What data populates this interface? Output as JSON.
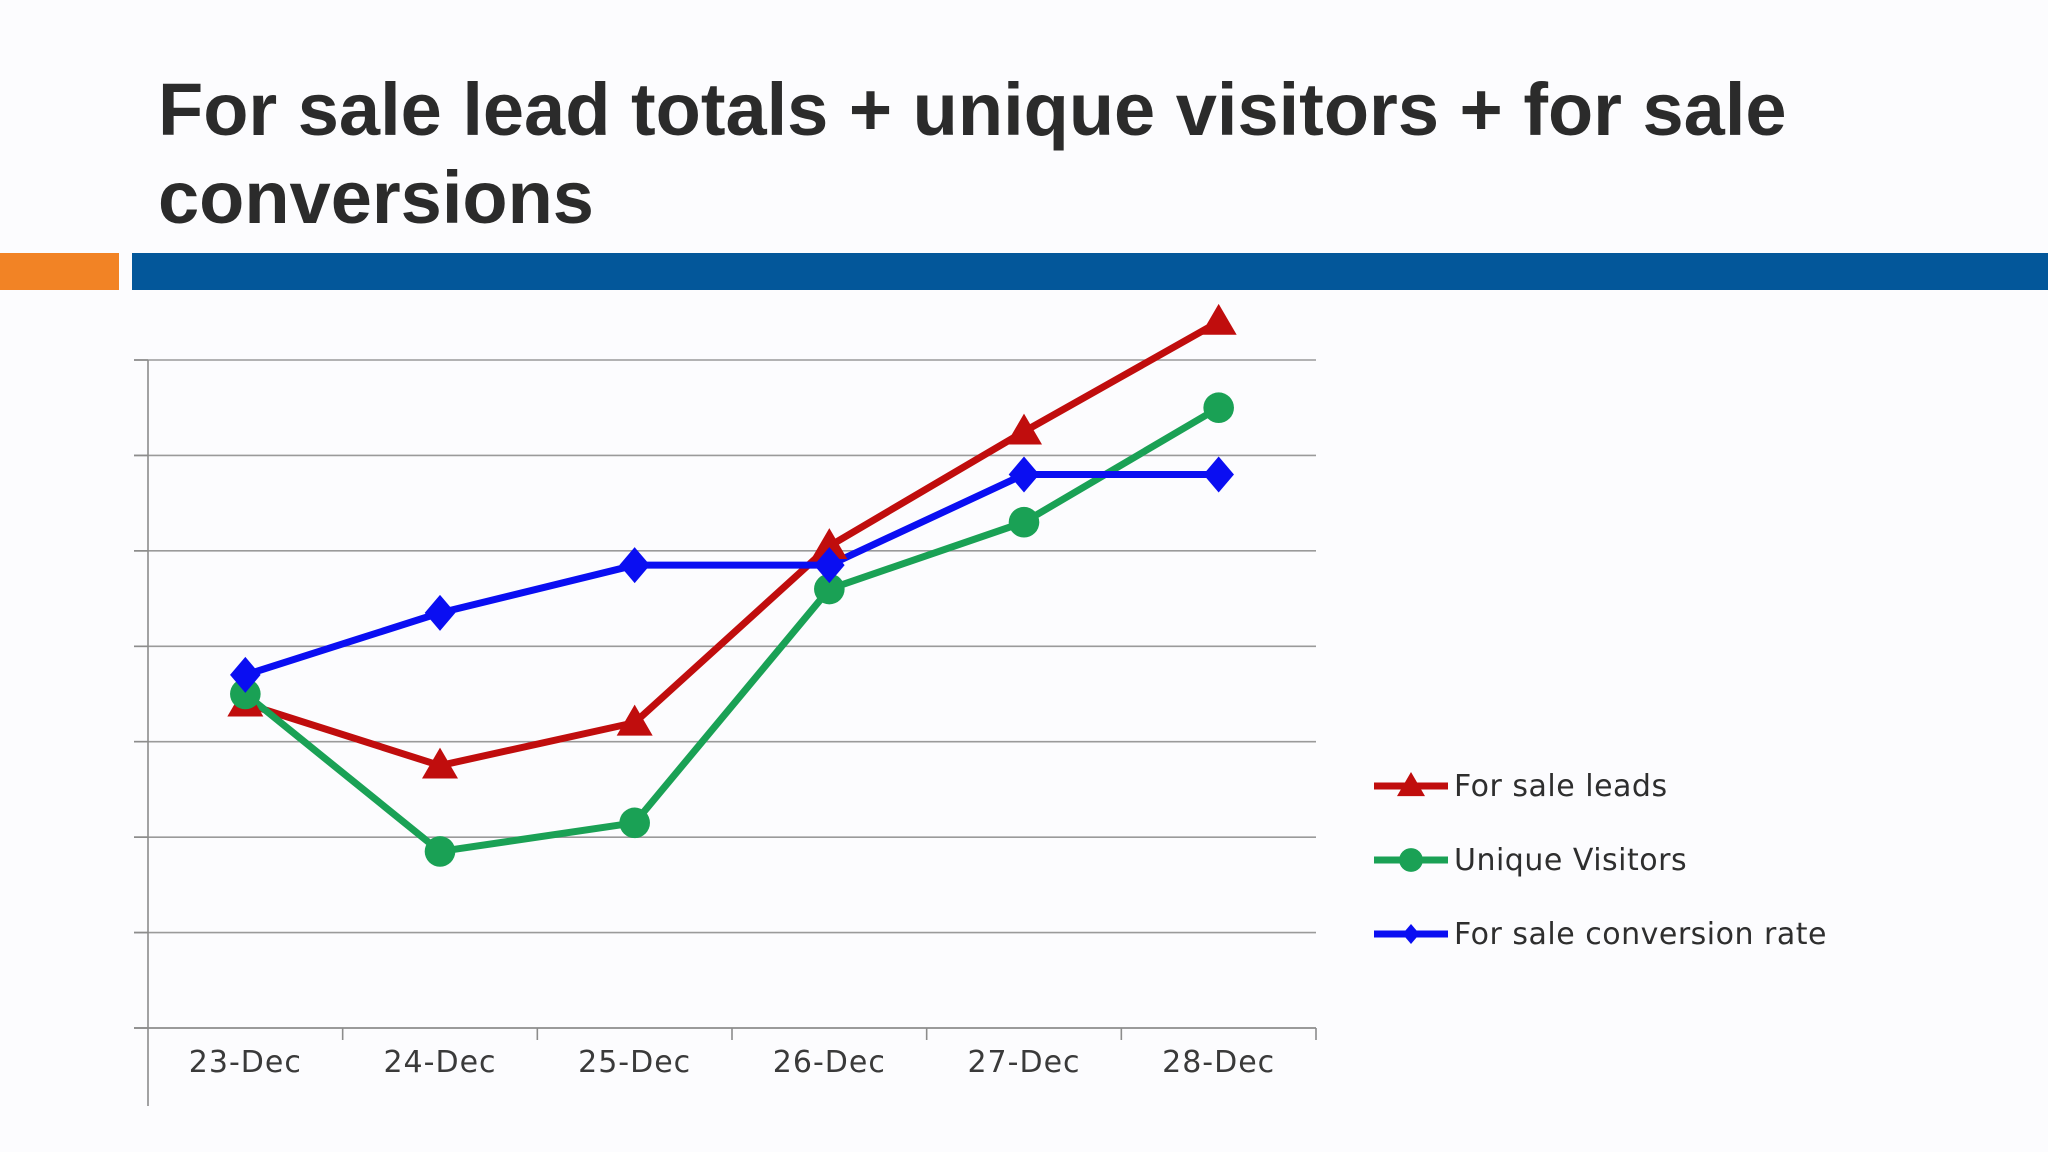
{
  "slide": {
    "title": "For sale lead totals + unique visitors + for sale conversions"
  },
  "colors": {
    "accent_orange": "#f28325",
    "accent_blue": "#03579a",
    "title_text": "#2b2b2b"
  },
  "chart_data": {
    "type": "line",
    "categories": [
      "23-Dec",
      "24-Dec",
      "25-Dec",
      "26-Dec",
      "27-Dec",
      "28-Dec"
    ],
    "ylim": [
      0,
      7
    ],
    "y_ticks_labeled": false,
    "grid": true,
    "legend_position": "right",
    "series": [
      {
        "name": "For sale leads",
        "color": "#c00d0d",
        "marker": "triangle",
        "values": [
          3.4,
          2.75,
          3.2,
          5.05,
          6.25,
          7.4
        ]
      },
      {
        "name": "Unique Visitors",
        "color": "#1aa155",
        "marker": "circle",
        "values": [
          3.5,
          1.85,
          2.15,
          4.6,
          5.3,
          6.5
        ]
      },
      {
        "name": "For sale conversion rate",
        "color": "#0a0ef2",
        "marker": "diamond",
        "values": [
          3.7,
          4.35,
          4.85,
          4.85,
          5.8,
          5.8
        ]
      }
    ]
  }
}
